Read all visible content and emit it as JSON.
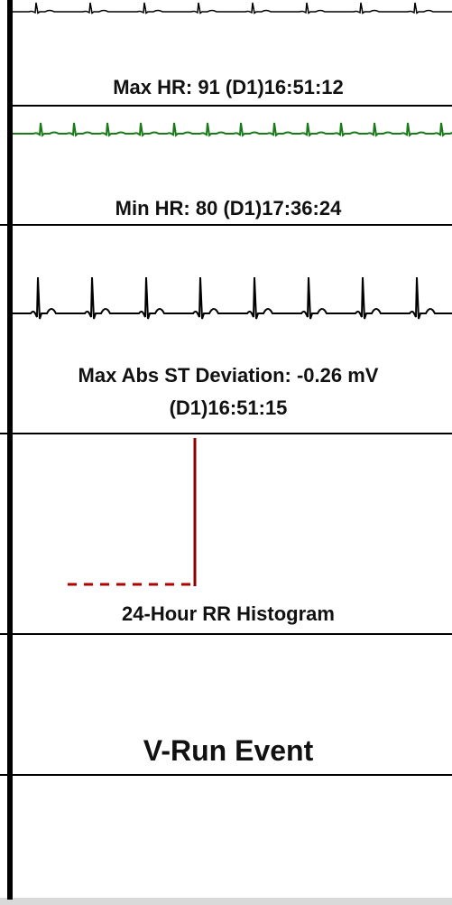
{
  "sections": [
    {
      "label": "Max HR: 91 (D1)16:51:12"
    },
    {
      "label": "Min HR: 80 (D1)17:36:24"
    },
    {
      "label": "Max Abs ST Deviation: -0.26 mV (D1)16:51:15"
    },
    {
      "label": "24-Hour RR Histogram"
    },
    {
      "label": "V-Run Event"
    }
  ]
}
